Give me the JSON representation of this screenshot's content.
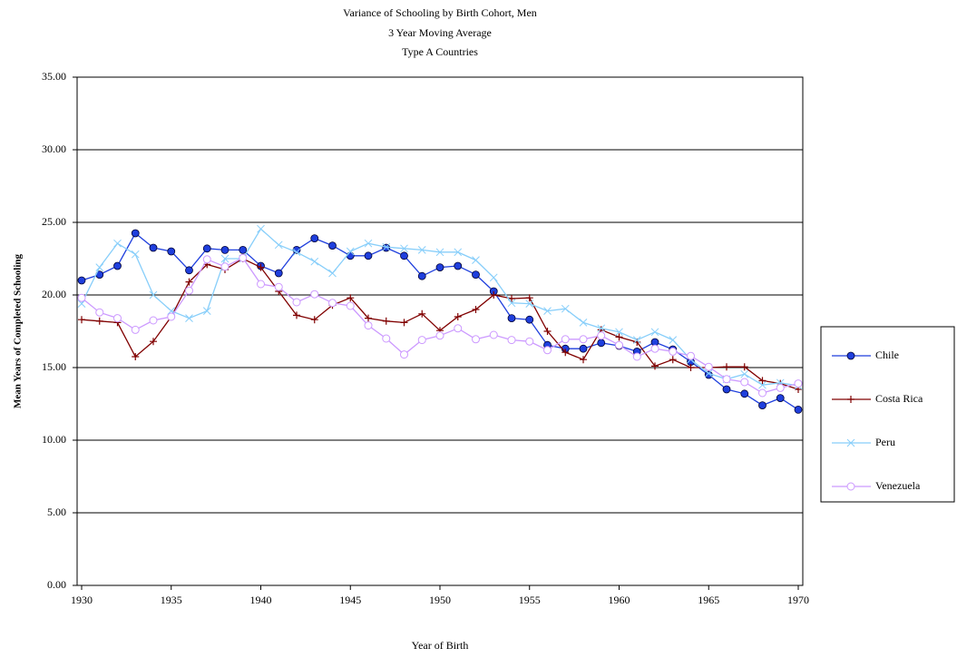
{
  "chart_data": {
    "type": "line",
    "title_lines": [
      "Variance of Schooling by Birth Cohort, Men",
      "3 Year Moving Average",
      "Type A Countries"
    ],
    "x_label": "Year of Birth",
    "y_label": "Mean Years of Completed Schooling",
    "x": [
      1930,
      1931,
      1932,
      1933,
      1934,
      1935,
      1936,
      1937,
      1938,
      1939,
      1940,
      1941,
      1942,
      1943,
      1944,
      1945,
      1946,
      1947,
      1948,
      1949,
      1950,
      1951,
      1952,
      1953,
      1954,
      1955,
      1956,
      1957,
      1958,
      1959,
      1960,
      1961,
      1962,
      1963,
      1964,
      1965,
      1966,
      1967,
      1968,
      1969,
      1970
    ],
    "xlim": [
      1930,
      1970
    ],
    "xticks": [
      1930,
      1935,
      1940,
      1945,
      1950,
      1955,
      1960,
      1965,
      1970
    ],
    "ylim": [
      0,
      35
    ],
    "yticks": [
      {
        "value": 0,
        "label": "0.00"
      },
      {
        "value": 5,
        "label": "5.00"
      },
      {
        "value": 10,
        "label": "10.00"
      },
      {
        "value": 15,
        "label": "15.00"
      },
      {
        "value": 20,
        "label": "20.00"
      },
      {
        "value": 25,
        "label": "25.00"
      },
      {
        "value": 30,
        "label": "30.00"
      },
      {
        "value": 35,
        "label": "35.00"
      }
    ],
    "grid": true,
    "legend": "right",
    "series": [
      {
        "name": "Chile",
        "color": "#1f3fdd",
        "marker": "circle-filled",
        "values": [
          21.0,
          21.4,
          22.0,
          24.25,
          23.25,
          23.0,
          21.7,
          23.2,
          23.1,
          23.1,
          22.0,
          21.5,
          23.1,
          23.9,
          23.4,
          22.7,
          22.7,
          23.25,
          22.7,
          21.3,
          21.9,
          22.0,
          21.4,
          20.25,
          18.4,
          18.3,
          16.55,
          16.3,
          16.3,
          16.7,
          16.5,
          16.1,
          16.75,
          16.25,
          15.4,
          14.5,
          13.5,
          13.2,
          12.4,
          12.9,
          12.1
        ]
      },
      {
        "name": "Costa Rica",
        "color": "#800000",
        "marker": "plus",
        "values": [
          18.3,
          18.2,
          18.1,
          15.75,
          16.8,
          18.5,
          20.9,
          22.1,
          21.75,
          22.5,
          21.9,
          20.25,
          18.6,
          18.3,
          19.3,
          19.8,
          18.4,
          18.2,
          18.1,
          18.7,
          17.55,
          18.5,
          19.0,
          20.0,
          19.75,
          19.8,
          17.5,
          16.05,
          15.55,
          17.6,
          17.1,
          16.75,
          15.1,
          15.55,
          15.0,
          15.0,
          15.05,
          15.05,
          14.1,
          13.9,
          13.5
        ]
      },
      {
        "name": "Peru",
        "color": "#87cefa",
        "marker": "cross",
        "values": [
          19.4,
          21.9,
          23.55,
          22.8,
          20.0,
          18.9,
          18.4,
          18.9,
          22.5,
          22.5,
          24.55,
          23.45,
          22.95,
          22.3,
          21.5,
          23.0,
          23.55,
          23.3,
          23.2,
          23.1,
          22.95,
          22.95,
          22.4,
          21.2,
          19.45,
          19.4,
          18.9,
          19.05,
          18.1,
          17.7,
          17.45,
          16.9,
          17.45,
          16.9,
          15.55,
          14.6,
          14.2,
          14.55,
          13.8,
          13.95,
          13.75
        ]
      },
      {
        "name": "Venezuela",
        "color": "#cc99ff",
        "marker": "circle-open",
        "values": [
          19.8,
          18.8,
          18.4,
          17.6,
          18.25,
          18.5,
          20.3,
          22.45,
          21.95,
          22.55,
          20.75,
          20.55,
          19.5,
          20.05,
          19.45,
          19.25,
          17.9,
          17.0,
          15.9,
          16.9,
          17.2,
          17.7,
          16.95,
          17.25,
          16.9,
          16.8,
          16.2,
          16.95,
          16.95,
          17.2,
          16.55,
          15.75,
          16.3,
          16.1,
          15.8,
          15.05,
          14.2,
          14.0,
          13.25,
          13.6,
          13.9
        ]
      }
    ]
  }
}
